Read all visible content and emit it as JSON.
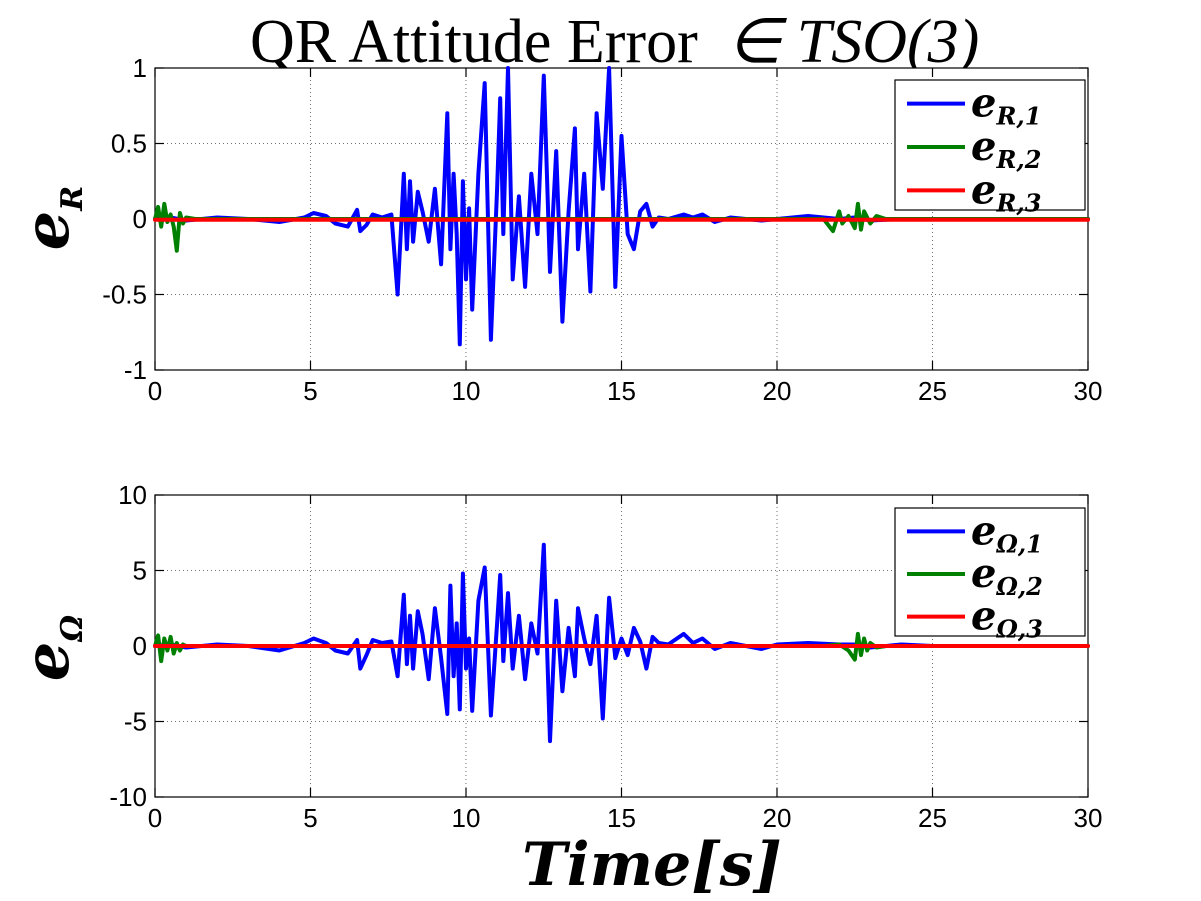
{
  "figure_title": "QR Attitude Error",
  "figure_title_math": "∈ TSO(3)",
  "xlabel": "Time[s]",
  "colors": {
    "s1": "#0000ff",
    "s2": "#008000",
    "s3": "#ff0000"
  },
  "chart_data": [
    {
      "type": "line",
      "ylabel": "e",
      "ylabel_sub": "R",
      "xlim": [
        0,
        30
      ],
      "ylim": [
        -1,
        1
      ],
      "xticks": [
        0,
        5,
        10,
        15,
        20,
        25,
        30
      ],
      "yticks": [
        -1,
        -0.5,
        0,
        0.5,
        1
      ],
      "xtick_labels": [
        "0",
        "5",
        "10",
        "15",
        "20",
        "25",
        "30"
      ],
      "ytick_labels": [
        "-1",
        "-0.5",
        "0",
        "0.5",
        "1"
      ],
      "grid": true,
      "legend_position": "top-right",
      "series": [
        {
          "name": "e",
          "name_sub": "R,1",
          "color": "#0000ff",
          "x": [
            0,
            0.5,
            1,
            2,
            3,
            4,
            4.8,
            5.1,
            5.5,
            5.8,
            6.2,
            6.5,
            6.6,
            6.8,
            7,
            7.3,
            7.6,
            7.8,
            8,
            8.1,
            8.2,
            8.3,
            8.45,
            8.6,
            8.8,
            9,
            9.2,
            9.4,
            9.5,
            9.6,
            9.7,
            9.8,
            9.9,
            10,
            10.1,
            10.2,
            10.4,
            10.6,
            10.8,
            11,
            11.1,
            11.2,
            11.35,
            11.5,
            11.7,
            11.9,
            12.1,
            12.3,
            12.5,
            12.7,
            12.9,
            13.1,
            13.3,
            13.5,
            13.6,
            13.8,
            14,
            14.2,
            14.4,
            14.6,
            14.8,
            15,
            15.2,
            15.4,
            15.6,
            15.8,
            16,
            16.2,
            16.5,
            17,
            17.3,
            17.6,
            18,
            18.5,
            19,
            19.5,
            20,
            21,
            22,
            22.5,
            23,
            24,
            25,
            27,
            30
          ],
          "y": [
            0,
            0.01,
            -0.01,
            0.01,
            0,
            -0.02,
            0.01,
            0.04,
            0.02,
            -0.03,
            -0.05,
            0.06,
            -0.08,
            -0.04,
            0.03,
            0.01,
            0.03,
            -0.5,
            0.3,
            -0.2,
            0.25,
            -0.15,
            0.18,
            0.05,
            -0.15,
            0.2,
            -0.3,
            0.7,
            -0.2,
            0.3,
            -0.1,
            -0.83,
            0.25,
            -0.4,
            0.07,
            -0.6,
            0.3,
            0.9,
            -0.8,
            0.2,
            0.8,
            -0.1,
            1.0,
            -0.4,
            0.15,
            -0.45,
            0.3,
            -0.1,
            0.95,
            -0.35,
            0.45,
            -0.68,
            0.05,
            0.6,
            -0.2,
            0.3,
            -0.48,
            0.7,
            0.2,
            1.0,
            -0.45,
            0.55,
            -0.1,
            -0.2,
            0.05,
            0.1,
            -0.05,
            0.01,
            0,
            0.03,
            0.01,
            0.03,
            -0.02,
            0.01,
            0,
            -0.01,
            0,
            0.02,
            0,
            0.01,
            -0.01,
            0,
            0,
            0,
            0
          ]
        },
        {
          "name": "e",
          "name_sub": "R,2",
          "color": "#008000",
          "x": [
            0,
            0.1,
            0.2,
            0.3,
            0.4,
            0.5,
            0.6,
            0.7,
            0.8,
            0.9,
            1,
            1.3,
            2,
            8,
            21.5,
            21.8,
            22,
            22.1,
            22.3,
            22.5,
            22.6,
            22.7,
            22.8,
            23,
            23.2,
            23.5,
            30
          ],
          "y": [
            0,
            0.08,
            -0.05,
            0.1,
            -0.02,
            0.03,
            -0.05,
            -0.21,
            0.04,
            -0.03,
            0.01,
            0,
            0,
            0,
            0,
            -0.08,
            0.05,
            -0.03,
            0.02,
            -0.06,
            0.1,
            -0.07,
            0.05,
            -0.03,
            0.02,
            0,
            0
          ]
        },
        {
          "name": "e",
          "name_sub": "R,3",
          "color": "#ff0000",
          "x": [
            0,
            5,
            10,
            15,
            20,
            25,
            30
          ],
          "y": [
            -0.005,
            -0.005,
            -0.005,
            -0.005,
            -0.005,
            -0.005,
            -0.005
          ]
        }
      ]
    },
    {
      "type": "line",
      "ylabel": "e",
      "ylabel_sub": "Ω",
      "xlim": [
        0,
        30
      ],
      "ylim": [
        -10,
        10
      ],
      "xticks": [
        0,
        5,
        10,
        15,
        20,
        25,
        30
      ],
      "yticks": [
        -10,
        -5,
        0,
        5,
        10
      ],
      "xtick_labels": [
        "0",
        "5",
        "10",
        "15",
        "20",
        "25",
        "30"
      ],
      "ytick_labels": [
        "-10",
        "-5",
        "0",
        "5",
        "10"
      ],
      "grid": true,
      "legend_position": "top-right",
      "series": [
        {
          "name": "e",
          "name_sub": "Ω,1",
          "color": "#0000ff",
          "x": [
            0,
            0.5,
            1,
            2,
            3,
            4,
            4.8,
            5.1,
            5.5,
            5.8,
            6.2,
            6.5,
            6.6,
            6.8,
            7,
            7.3,
            7.6,
            7.8,
            8,
            8.1,
            8.2,
            8.3,
            8.45,
            8.6,
            8.8,
            9,
            9.2,
            9.4,
            9.5,
            9.6,
            9.7,
            9.8,
            9.9,
            10,
            10.1,
            10.2,
            10.4,
            10.6,
            10.8,
            11,
            11.1,
            11.2,
            11.35,
            11.5,
            11.7,
            11.9,
            12.1,
            12.3,
            12.5,
            12.7,
            12.9,
            13.1,
            13.3,
            13.5,
            13.6,
            13.8,
            14,
            14.2,
            14.4,
            14.6,
            14.8,
            15,
            15.2,
            15.4,
            15.6,
            15.8,
            16,
            16.2,
            16.5,
            17,
            17.3,
            17.6,
            18,
            18.5,
            19,
            19.5,
            20,
            21,
            22,
            22.5,
            23,
            24,
            25,
            27,
            30
          ],
          "y": [
            0,
            0.1,
            -0.1,
            0.1,
            0,
            -0.3,
            0.2,
            0.5,
            0.2,
            -0.3,
            -0.5,
            0.4,
            -1.5,
            -0.6,
            0.4,
            0.2,
            0.3,
            -2.0,
            3.4,
            -1.2,
            2.0,
            -1.5,
            2.3,
            0.8,
            -2.2,
            2.5,
            -0.8,
            -4.5,
            4.0,
            -2.0,
            1.5,
            -4.2,
            4.8,
            -1.5,
            0.5,
            -4.3,
            3.0,
            5.2,
            -4.6,
            1.5,
            4.7,
            -1.0,
            3.5,
            -1.5,
            2.0,
            -2.2,
            1.5,
            -0.5,
            6.7,
            -6.3,
            3.0,
            -3.0,
            1.2,
            -2.0,
            2.5,
            0.5,
            -1.2,
            2.0,
            -4.8,
            3.2,
            -0.8,
            0.5,
            -0.6,
            1.2,
            0.3,
            -1.5,
            0.6,
            0.2,
            0.1,
            0.8,
            0.2,
            0.5,
            -0.2,
            0.2,
            0,
            -0.2,
            0.1,
            0.2,
            0.1,
            0.1,
            -0.1,
            0.1,
            0,
            0,
            0
          ]
        },
        {
          "name": "e",
          "name_sub": "Ω,2",
          "color": "#008000",
          "x": [
            0,
            0.1,
            0.2,
            0.3,
            0.4,
            0.5,
            0.6,
            0.7,
            0.8,
            0.9,
            1,
            1.3,
            2,
            8,
            21.5,
            22,
            22.3,
            22.5,
            22.6,
            22.7,
            22.8,
            22.9,
            23,
            23.2,
            23.5,
            30
          ],
          "y": [
            0,
            0.7,
            -1.0,
            0.5,
            -0.3,
            0.6,
            -0.5,
            0.2,
            -0.3,
            0.1,
            0,
            0,
            0,
            0,
            0,
            0.1,
            -0.3,
            -0.9,
            0.8,
            -0.6,
            0.5,
            -0.3,
            0.2,
            -0.1,
            0,
            0
          ]
        },
        {
          "name": "e",
          "name_sub": "Ω,3",
          "color": "#ff0000",
          "x": [
            0,
            5,
            10,
            15,
            20,
            25,
            30
          ],
          "y": [
            0,
            0,
            0,
            0,
            0,
            0,
            0
          ]
        }
      ]
    }
  ]
}
